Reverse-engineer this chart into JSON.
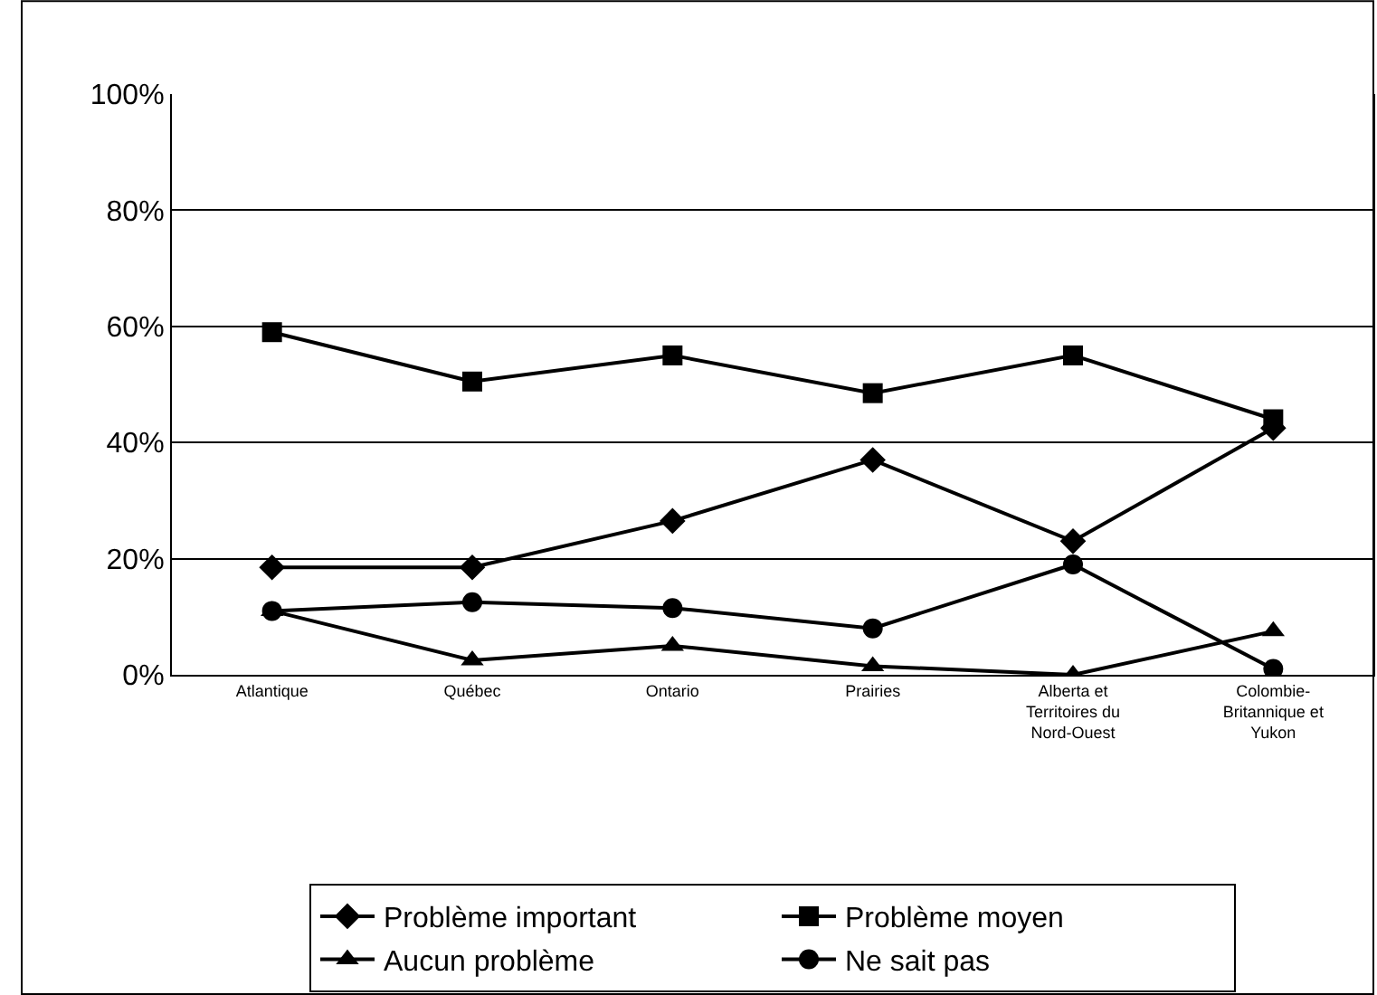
{
  "chart_data": {
    "type": "line",
    "categories": [
      "Atlantique",
      "Québec",
      "Ontario",
      "Prairies",
      "Alberta et Territoires du Nord-Ouest",
      "Colombie-Britannique et Yukon"
    ],
    "series": [
      {
        "name": "Problème important",
        "color": "#000000",
        "marker": "diamond",
        "values": [
          18.5,
          18.5,
          26.5,
          37,
          23,
          42.5
        ]
      },
      {
        "name": "Problème moyen",
        "color": "#000000",
        "marker": "square",
        "values": [
          59,
          50.5,
          55,
          48.5,
          55,
          44
        ]
      },
      {
        "name": "Aucun problème",
        "color": "#000000",
        "marker": "triangle",
        "values": [
          11,
          2.5,
          5,
          1.5,
          0,
          7.5
        ]
      },
      {
        "name": "Ne sait pas",
        "color": "#000000",
        "marker": "circle",
        "values": [
          11,
          12.5,
          11.5,
          8,
          19,
          1
        ]
      }
    ],
    "ylim": [
      0,
      100
    ],
    "yticks": [
      {
        "value": 0,
        "label": "0%"
      },
      {
        "value": 20,
        "label": "20%"
      },
      {
        "value": 40,
        "label": "40%"
      },
      {
        "value": 60,
        "label": "60%"
      },
      {
        "value": 80,
        "label": "80%"
      },
      {
        "value": 100,
        "label": "100%"
      }
    ],
    "grid": "y",
    "legend": "bottom",
    "line_style": "solid"
  }
}
